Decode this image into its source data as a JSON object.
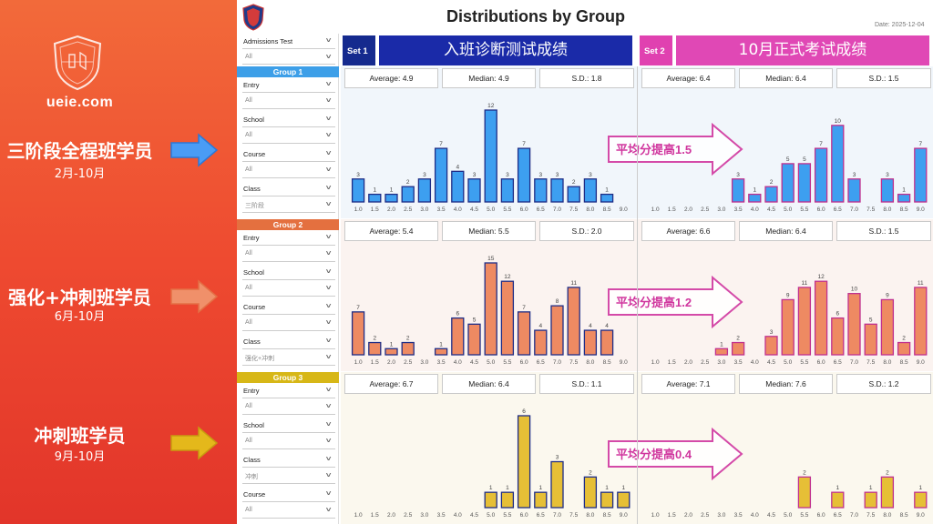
{
  "site": "ueie.com",
  "left_groups": [
    {
      "title": "三阶段全程班学员",
      "sub": "2月-10月",
      "arrow_color": "#4a9cf5"
    },
    {
      "title": "强化+冲刺班学员",
      "sub": "6月-10月",
      "arrow_color": "#f0906a"
    },
    {
      "title": "冲刺班学员",
      "sub": "9月-10月",
      "arrow_color": "#e4b81b"
    }
  ],
  "report": {
    "title": "Distributions by Group",
    "date": "Date: 2025-12-04"
  },
  "slicers": {
    "admissions": {
      "label": "Admissions Test",
      "value": "All"
    },
    "groups": [
      {
        "name": "Group 1",
        "color": "#3d9fe8",
        "fields": [
          {
            "label": "Entry",
            "value": "All"
          },
          {
            "label": "School",
            "value": "All"
          },
          {
            "label": "Course",
            "value": "All"
          },
          {
            "label": "Class",
            "value": "三阶段"
          }
        ]
      },
      {
        "name": "Group 2",
        "color": "#e4703f",
        "fields": [
          {
            "label": "Entry",
            "value": "All"
          },
          {
            "label": "School",
            "value": "All"
          },
          {
            "label": "Course",
            "value": "All"
          },
          {
            "label": "Class",
            "value": "强化+冲刺"
          }
        ]
      },
      {
        "name": "Group 3",
        "color": "#d7b717",
        "fields": [
          {
            "label": "Entry",
            "value": "All"
          },
          {
            "label": "School",
            "value": "All"
          },
          {
            "label": "Class",
            "value": "冲刺"
          },
          {
            "label": "Course",
            "value": "All"
          }
        ]
      }
    ]
  },
  "sets": [
    {
      "label": "Set 1",
      "title": "入班诊断测试成绩",
      "label_bg": "#152a8e",
      "title_bg": "#1a2aa8"
    },
    {
      "label": "Set 2",
      "title": "10月正式考试成绩",
      "label_bg": "#e041b0",
      "title_bg": "#e048b5"
    }
  ],
  "improvements": [
    "平均分提高1.5",
    "平均分提高1.2",
    "平均分提高0.4"
  ],
  "colors": {
    "g1_bar": "#3d9ff0",
    "g1_border_set1": "#1f2d86",
    "g1_border_set2": "#c0308e",
    "g2_bar": "#ee8a62",
    "g2_border_set1": "#1f2d86",
    "g2_border_set2": "#c0308e",
    "g3_bar": "#e6bf36",
    "g3_border_set1": "#1f2d86",
    "g3_border_set2": "#c0308e",
    "g1_bg": "#f1f6fb",
    "g2_bg": "#fbf3f0",
    "g3_bg": "#fbf8ee"
  },
  "chart_data": [
    {
      "type": "bar",
      "group": "Group 1",
      "set": "Set 1",
      "stats": {
        "average": "Average: 4.9",
        "median": "Median: 4.9",
        "sd": "S.D.: 1.8"
      },
      "categories": [
        "1.0",
        "1.5",
        "2.0",
        "2.5",
        "3.0",
        "3.5",
        "4.0",
        "4.5",
        "5.0",
        "5.5",
        "6.0",
        "6.5",
        "7.0",
        "7.5",
        "8.0",
        "8.5",
        "9.0"
      ],
      "values": [
        3,
        1,
        1,
        2,
        3,
        7,
        4,
        3,
        12,
        3,
        7,
        3,
        3,
        2,
        3,
        1,
        null
      ]
    },
    {
      "type": "bar",
      "group": "Group 1",
      "set": "Set 2",
      "stats": {
        "average": "Average: 6.4",
        "median": "Median: 6.4",
        "sd": "S.D.: 1.5"
      },
      "categories": [
        "1.0",
        "1.5",
        "2.0",
        "2.5",
        "3.0",
        "3.5",
        "4.0",
        "4.5",
        "5.0",
        "5.5",
        "6.0",
        "6.5",
        "7.0",
        "7.5",
        "8.0",
        "8.5",
        "9.0"
      ],
      "values": [
        null,
        null,
        null,
        null,
        null,
        3,
        1,
        2,
        5,
        5,
        7,
        10,
        3,
        null,
        3,
        1,
        7
      ]
    },
    {
      "type": "bar",
      "group": "Group 2",
      "set": "Set 1",
      "stats": {
        "average": "Average: 5.4",
        "median": "Median: 5.5",
        "sd": "S.D.: 2.0"
      },
      "categories": [
        "1.0",
        "1.5",
        "2.0",
        "2.5",
        "3.0",
        "3.5",
        "4.0",
        "4.5",
        "5.0",
        "5.5",
        "6.0",
        "6.5",
        "7.0",
        "7.5",
        "8.0",
        "8.5",
        "9.0"
      ],
      "values": [
        7,
        2,
        1,
        2,
        null,
        1,
        6,
        5,
        15,
        12,
        7,
        4,
        8,
        11,
        4,
        4,
        null
      ]
    },
    {
      "type": "bar",
      "group": "Group 2",
      "set": "Set 2",
      "stats": {
        "average": "Average: 6.6",
        "median": "Median: 6.4",
        "sd": "S.D.: 1.5"
      },
      "categories": [
        "1.0",
        "1.5",
        "2.0",
        "2.5",
        "3.0",
        "3.5",
        "4.0",
        "4.5",
        "5.0",
        "5.5",
        "6.0",
        "6.5",
        "7.0",
        "7.5",
        "8.0",
        "8.5",
        "9.0"
      ],
      "values": [
        null,
        null,
        null,
        null,
        1,
        2,
        null,
        3,
        9,
        11,
        12,
        6,
        10,
        5,
        9,
        2,
        11
      ]
    },
    {
      "type": "bar",
      "group": "Group 3",
      "set": "Set 1",
      "stats": {
        "average": "Average: 6.7",
        "median": "Median: 6.4",
        "sd": "S.D.: 1.1"
      },
      "categories": [
        "1.0",
        "1.5",
        "2.0",
        "2.5",
        "3.0",
        "3.5",
        "4.0",
        "4.5",
        "5.0",
        "5.5",
        "6.0",
        "6.5",
        "7.0",
        "7.5",
        "8.0",
        "8.5",
        "9.0"
      ],
      "values": [
        null,
        null,
        null,
        null,
        null,
        null,
        null,
        null,
        1,
        1,
        6,
        1,
        3,
        null,
        2,
        1,
        1
      ]
    },
    {
      "type": "bar",
      "group": "Group 3",
      "set": "Set 2",
      "stats": {
        "average": "Average: 7.1",
        "median": "Median: 7.6",
        "sd": "S.D.: 1.2"
      },
      "categories": [
        "1.0",
        "1.5",
        "2.0",
        "2.5",
        "3.0",
        "3.5",
        "4.0",
        "4.5",
        "5.0",
        "5.5",
        "6.0",
        "6.5",
        "7.0",
        "7.5",
        "8.0",
        "8.5",
        "9.0"
      ],
      "values": [
        null,
        null,
        null,
        null,
        null,
        null,
        null,
        null,
        null,
        2,
        null,
        1,
        null,
        1,
        2,
        null,
        1
      ]
    }
  ]
}
